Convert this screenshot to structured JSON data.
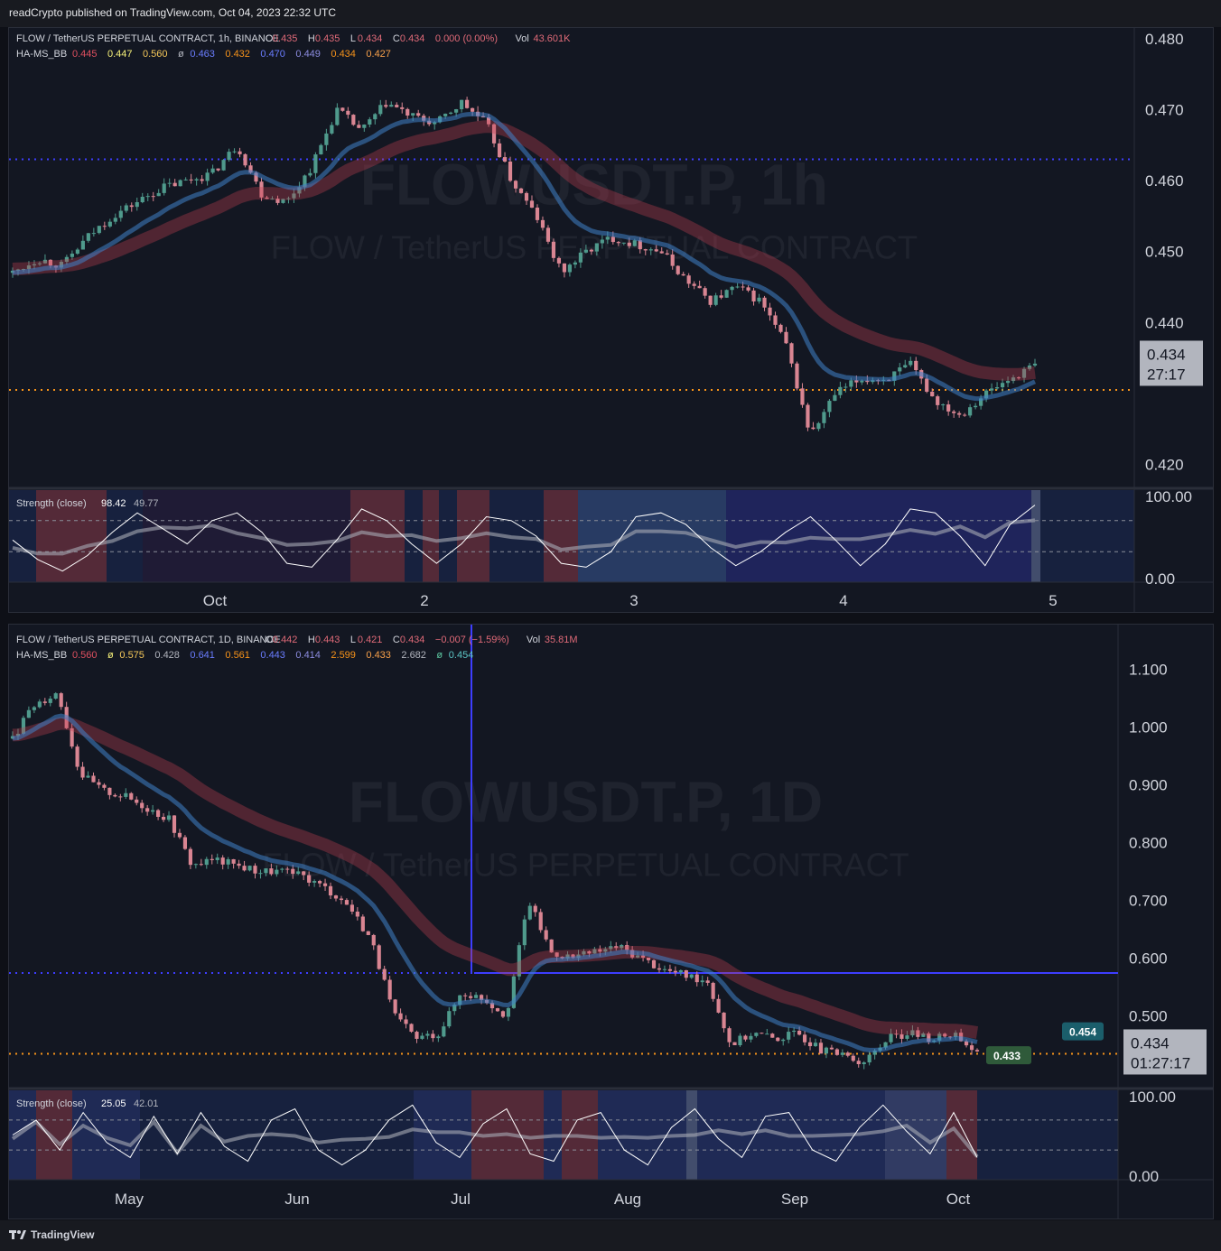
{
  "header": {
    "published": "readCrypto published on TradingView.com, Oct 04, 2023 22:32 UTC"
  },
  "footer": {
    "brand": "TradingView"
  },
  "colors": {
    "bg": "#131722",
    "up": "#3f7a6f",
    "down": "#d4707e",
    "blue": "#3d3dff",
    "orange": "#f7931a",
    "yellow": "#b5b35c",
    "red": "#a31f2b"
  },
  "chart_data": [
    {
      "type": "candlestick",
      "title": "FLOW / TetherUS PERPETUAL CONTRACT, 1h, BINANCE",
      "ohlc_text": {
        "o_label": "O",
        "o": "0.435",
        "h_label": "H",
        "h": "0.435",
        "l_label": "L",
        "l": "0.434",
        "c_label": "C",
        "c": "0.434",
        "chg": "0.000 (0.00%)",
        "vol_label": "Vol",
        "vol": "43.601K"
      },
      "indicator_label": "HA-MS_BB",
      "indicator_values": [
        "0.445",
        "0.447",
        "0.560",
        "ø",
        "0.463",
        "0.432",
        "0.470",
        "0.449",
        "0.434",
        "0.427"
      ],
      "y_ticks": [
        "0.480",
        "0.470",
        "0.460",
        "0.450",
        "0.440",
        "0.420"
      ],
      "ylim": [
        0.416,
        0.4815
      ],
      "x_ticks": [
        "Oct",
        "2",
        "3",
        "4",
        "5"
      ],
      "last_price": "0.434",
      "countdown": "27:17",
      "watermark": "FLOWUSDT.P, 1h",
      "watermark_sub": "FLOW / TetherUS PERPETUAL CONTRACT",
      "levels": {
        "blue_dotted": 0.463,
        "orange_dotted": 0.4305
      },
      "close_path": [
        0.447,
        0.449,
        0.448,
        0.452,
        0.455,
        0.457,
        0.459,
        0.46,
        0.461,
        0.465,
        0.458,
        0.457,
        0.462,
        0.47,
        0.467,
        0.471,
        0.469,
        0.468,
        0.471,
        0.468,
        0.46,
        0.455,
        0.447,
        0.45,
        0.452,
        0.451,
        0.45,
        0.446,
        0.443,
        0.445,
        0.443,
        0.437,
        0.424,
        0.43,
        0.432,
        0.432,
        0.434,
        0.429,
        0.427,
        0.43,
        0.432,
        0.434
      ],
      "strength": {
        "label": "Strength (close)",
        "value1": "98.42",
        "value2": "49.77",
        "y_ticks": [
          "100.00",
          "0.00"
        ],
        "series": [
          45,
          20,
          5,
          25,
          55,
          80,
          60,
          40,
          70,
          80,
          55,
          15,
          10,
          45,
          85,
          70,
          40,
          15,
          40,
          75,
          70,
          50,
          15,
          10,
          30,
          75,
          80,
          65,
          35,
          12,
          30,
          55,
          75,
          45,
          12,
          40,
          85,
          80,
          50,
          12,
          65,
          90
        ]
      }
    },
    {
      "type": "candlestick",
      "title": "FLOW / TetherUS PERPETUAL CONTRACT, 1D, BINANCE",
      "ohlc_text": {
        "o_label": "O",
        "o": "0.442",
        "h_label": "H",
        "h": "0.443",
        "l_label": "L",
        "l": "0.421",
        "c_label": "C",
        "c": "0.434",
        "chg": "−0.007 (−1.59%)",
        "vol_label": "Vol",
        "vol": "35.81M"
      },
      "indicator_label": "HA-MS_BB",
      "indicator_values": [
        "0.560",
        "ø",
        "0.575",
        "0.428",
        "0.641",
        "0.561",
        "0.443",
        "0.414",
        "2.599",
        "0.433",
        "2.682",
        "ø",
        "0.454"
      ],
      "y_ticks": [
        "1.100",
        "1.000",
        "0.900",
        "0.800",
        "0.700",
        "0.600",
        "0.500"
      ],
      "ylim": [
        0.38,
        1.115
      ],
      "x_ticks": [
        "May",
        "Jun",
        "Jul",
        "Aug",
        "Sep",
        "Oct"
      ],
      "last_price": "0.434",
      "countdown": "01:27:17",
      "tag_upper": "0.454",
      "tag_lower": "0.433",
      "watermark": "FLOWUSDT.P, 1D",
      "watermark_sub": "FLOW / TetherUS PERPETUAL CONTRACT",
      "levels": {
        "blue_solid": 0.574,
        "orange_dotted": 0.434
      },
      "close_path": [
        0.98,
        1.04,
        1.06,
        0.92,
        0.89,
        0.88,
        0.86,
        0.84,
        0.76,
        0.77,
        0.76,
        0.75,
        0.75,
        0.74,
        0.72,
        0.69,
        0.63,
        0.5,
        0.46,
        0.47,
        0.54,
        0.53,
        0.5,
        0.7,
        0.61,
        0.6,
        0.61,
        0.62,
        0.6,
        0.58,
        0.57,
        0.56,
        0.45,
        0.47,
        0.46,
        0.47,
        0.44,
        0.43,
        0.42,
        0.46,
        0.47,
        0.46,
        0.47,
        0.434
      ],
      "strength": {
        "label": "Strength (close)",
        "value1": "25.05",
        "value2": "42.01",
        "y_ticks": [
          "100.00",
          "0.00"
        ],
        "series": [
          50,
          70,
          30,
          80,
          40,
          20,
          75,
          25,
          80,
          35,
          15,
          70,
          85,
          30,
          10,
          30,
          70,
          90,
          40,
          20,
          65,
          85,
          25,
          15,
          70,
          80,
          30,
          10,
          60,
          85,
          45,
          20,
          75,
          80,
          30,
          15,
          60,
          90,
          55,
          25,
          80,
          20
        ]
      }
    }
  ]
}
